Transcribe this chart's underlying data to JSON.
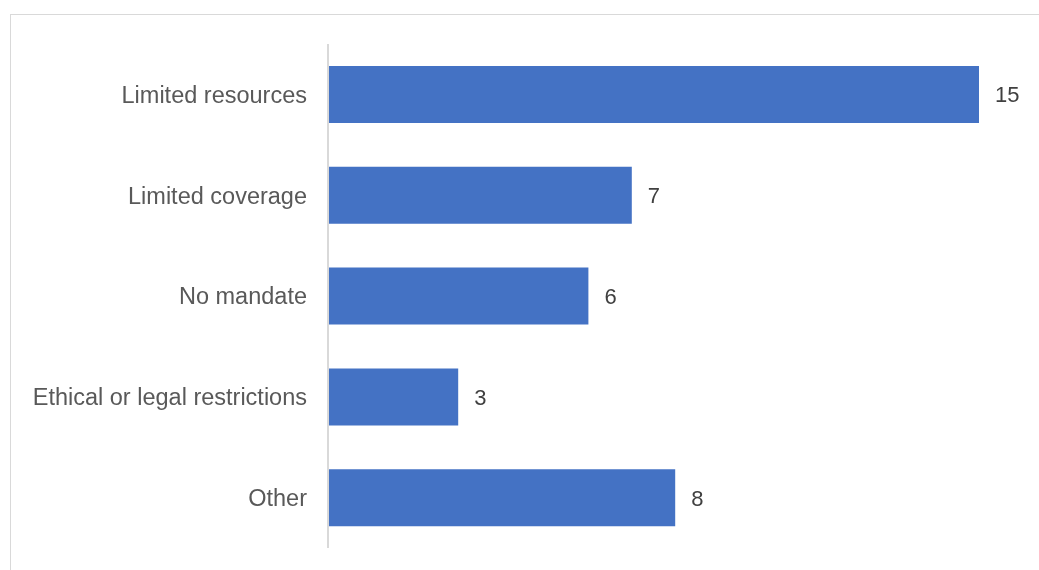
{
  "chart_data": {
    "type": "bar",
    "orientation": "horizontal",
    "categories": [
      "Limited resources",
      "Limited coverage",
      "No mandate",
      "Ethical or legal restrictions",
      "Other"
    ],
    "values": [
      15,
      7,
      6,
      3,
      8
    ],
    "color": "#4472c4",
    "data_labels": true,
    "tick_labels": "y"
  }
}
